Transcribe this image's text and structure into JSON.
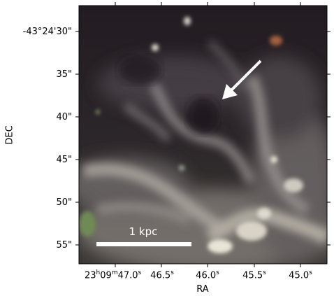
{
  "axes": {
    "ylabel": "DEC",
    "xlabel": "RA",
    "y_ticks": [
      "-43°24'30\"",
      "35\"",
      "40\"",
      "45\"",
      "50\"",
      "55\""
    ],
    "x_ticks": [
      {
        "h": "23",
        "m": "09",
        "s": "47.0"
      },
      {
        "s": "46.5"
      },
      {
        "s": "46.0"
      },
      {
        "s": "45.5"
      },
      {
        "s": "45.0"
      }
    ]
  },
  "annotations": {
    "scalebar_label": "1 kpc",
    "arrow": "white-arrow-icon"
  },
  "colors": {
    "background_dark": "#1e1a1f",
    "nebula": "#c7c2b8",
    "arrow": "#ffffff"
  }
}
